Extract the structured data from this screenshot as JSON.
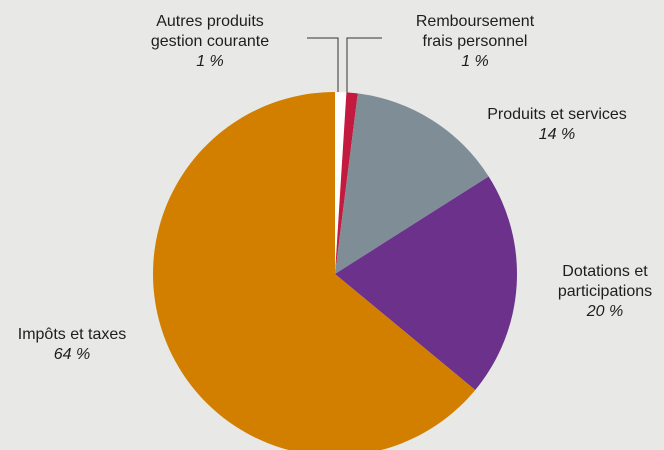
{
  "chart_data": {
    "type": "pie",
    "categories": [
      "Autres produits\ngestion courante",
      "Remboursement\nfrais personnel",
      "Produits et services",
      "Dotations et\nparticipations",
      "Impôts et taxes"
    ],
    "values": [
      1,
      1,
      14,
      20,
      64
    ],
    "value_labels": [
      "1 %",
      "1 %",
      "14 %",
      "20 %",
      "64 %"
    ],
    "colors": [
      "#ffffff",
      "#c41a3f",
      "#7f8e96",
      "#6b318b",
      "#d27f00"
    ]
  }
}
